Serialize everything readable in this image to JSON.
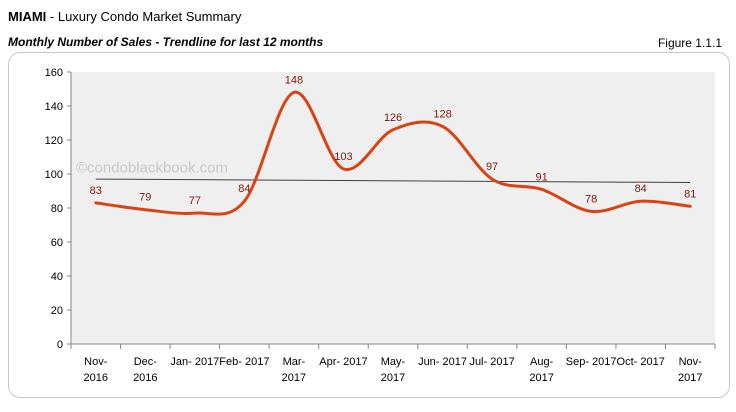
{
  "header": {
    "title_bold": "MIAMI",
    "title_rest": " - Luxury Condo Market Summary",
    "subtitle": "Monthly Number of Sales - Trendline for last 12 months",
    "figure_label": "Figure 1.1.1"
  },
  "watermark": "©condoblackbook.com",
  "chart_data": {
    "type": "line",
    "categories": [
      [
        "Nov-",
        "2016"
      ],
      [
        "Dec-",
        "2016"
      ],
      [
        "Jan- 2017"
      ],
      [
        "Feb- 2017"
      ],
      [
        "Mar-",
        "2017"
      ],
      [
        "Apr- 2017"
      ],
      [
        "May-",
        "2017"
      ],
      [
        "Jun- 2017"
      ],
      [
        "Jul- 2017"
      ],
      [
        "Aug-",
        "2017"
      ],
      [
        "Sep- 2017"
      ],
      [
        "Oct- 2017"
      ],
      [
        "Nov-",
        "2017"
      ]
    ],
    "series": [
      {
        "values": [
          83,
          79,
          77,
          84,
          148,
          103,
          126,
          128,
          97,
          91,
          78,
          84,
          81
        ],
        "color": "#d84315",
        "smooth": true
      }
    ],
    "trendline": {
      "start": 97,
      "end": 95,
      "color": "#404040"
    },
    "ylim": [
      0,
      160
    ],
    "yticks": [
      0,
      20,
      40,
      60,
      80,
      100,
      120,
      140,
      160
    ],
    "grid": false,
    "plot_background": "#efefef",
    "data_label_color": "#7a1a12",
    "legend": "none"
  }
}
